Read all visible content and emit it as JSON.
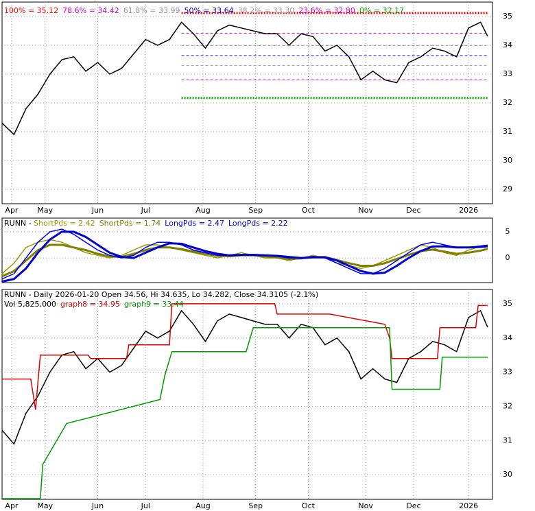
{
  "chart_data": [
    {
      "type": "line",
      "title": "RUNN - Daily 2026-01-20 Open 34.56, Hi 34.635, Lo 34.282, Close 34.3105 (-2.1%)",
      "x": [
        0,
        5,
        10,
        15,
        20,
        25,
        30,
        35,
        40,
        45,
        50,
        55,
        60,
        65,
        70,
        75,
        80,
        85,
        90,
        95,
        100,
        105,
        110,
        115,
        120,
        125,
        130,
        135,
        140,
        145,
        150,
        155,
        160,
        165,
        170,
        175,
        180,
        185,
        190,
        195,
        200,
        203
      ],
      "series": [
        {
          "color": "#000000",
          "values": [
            31.3,
            30.9,
            31.8,
            32.3,
            33.0,
            33.5,
            33.6,
            33.1,
            33.4,
            33.0,
            33.2,
            33.7,
            34.2,
            34.0,
            34.2,
            34.8,
            34.4,
            33.9,
            34.5,
            34.7,
            34.6,
            34.5,
            34.4,
            34.4,
            34.0,
            34.4,
            34.3,
            33.8,
            34.0,
            33.6,
            32.8,
            33.1,
            32.8,
            32.7,
            33.4,
            33.6,
            33.9,
            33.8,
            33.6,
            34.6,
            34.8,
            34.31
          ]
        }
      ],
      "levels": [
        {
          "label": "100% = 35.12",
          "value": 35.12,
          "color": "#ff0000"
        },
        {
          "label": "78.6% = 34.42",
          "value": 34.42,
          "color": "#cc00cc"
        },
        {
          "label": "61.8% = 33.99",
          "value": 33.99,
          "color": "#8899bb"
        },
        {
          "label": "50% = 33.64",
          "value": 33.64,
          "color": "#0000cc"
        },
        {
          "label": "38.2% = 33.30",
          "value": 33.3,
          "color": "#999999"
        },
        {
          "label": "23.6% = 32.80",
          "value": 32.8,
          "color": "#cc00cc"
        },
        {
          "label": "0% = 32.17",
          "value": 32.17,
          "color": "#00aa00"
        }
      ],
      "xlim": [
        0,
        205
      ],
      "xticks": [
        {
          "value": 4,
          "label": "Apr"
        },
        {
          "value": 18,
          "label": "May"
        },
        {
          "value": 40,
          "label": "Jun"
        },
        {
          "value": 60,
          "label": "Jul"
        },
        {
          "value": 84,
          "label": "Aug"
        },
        {
          "value": 106,
          "label": "Sep"
        },
        {
          "value": 128,
          "label": "Oct"
        },
        {
          "value": 152,
          "label": "Nov"
        },
        {
          "value": 172,
          "label": "Dec"
        },
        {
          "value": 195,
          "label": "2026"
        }
      ],
      "ylim": [
        28.5,
        35.5
      ],
      "yticks": [
        29,
        30,
        31,
        32,
        33,
        34,
        35
      ],
      "grid": true
    },
    {
      "type": "line",
      "title": "RUNN - ",
      "x": [
        0,
        5,
        10,
        15,
        20,
        25,
        30,
        35,
        40,
        45,
        50,
        55,
        60,
        65,
        70,
        75,
        80,
        85,
        90,
        95,
        100,
        105,
        110,
        115,
        120,
        125,
        130,
        135,
        140,
        145,
        150,
        155,
        160,
        165,
        170,
        175,
        180,
        185,
        190,
        195,
        200,
        203
      ],
      "series": [
        {
          "name": "ShortPds = 2.42",
          "color": "#999900",
          "values": [
            -3,
            -1,
            2,
            3,
            3.5,
            3,
            2,
            1,
            0.5,
            0,
            0.5,
            1.5,
            2.5,
            2.5,
            2,
            1.5,
            1,
            0.5,
            0,
            0.5,
            1,
            0.5,
            0,
            0,
            -0.5,
            0,
            0.5,
            0,
            -1,
            -1.5,
            -2,
            -1.5,
            -0.5,
            0.5,
            1.5,
            2.5,
            2,
            1,
            0.5,
            1.5,
            2.2,
            2.42
          ]
        },
        {
          "name": "ShortPds = 1.74",
          "color": "#808000",
          "values": [
            -3.5,
            -2.5,
            -0.5,
            1.5,
            2.5,
            2.5,
            2,
            1.5,
            0.8,
            0.3,
            0.2,
            0.8,
            1.5,
            2,
            2,
            1.7,
            1.2,
            0.8,
            0.4,
            0.3,
            0.5,
            0.5,
            0.3,
            0.1,
            -0.2,
            -0.1,
            0.2,
            0.2,
            -0.4,
            -1,
            -1.5,
            -1.5,
            -1,
            -0.2,
            0.6,
            1.3,
            1.6,
            1.2,
            0.8,
            1,
            1.4,
            1.74
          ]
        },
        {
          "name": "LongPds = 2.47",
          "color": "#0000ff",
          "values": [
            -4,
            -3,
            0,
            3,
            5,
            5.5,
            4.5,
            3,
            1.5,
            0.5,
            0,
            0.5,
            2,
            3,
            3,
            2.5,
            1.5,
            1,
            0.5,
            0.5,
            0.5,
            0.5,
            0.5,
            0.3,
            0,
            0,
            0.3,
            0,
            -1,
            -2,
            -3,
            -3,
            -2,
            -0.5,
            1,
            2.5,
            3,
            2.5,
            2,
            2,
            2.3,
            2.47
          ]
        },
        {
          "name": "LongPds = 2.22",
          "color": "#0000cc",
          "values": [
            -4.5,
            -4,
            -2,
            1,
            3.5,
            5,
            5,
            4,
            2.5,
            1,
            0.2,
            0,
            1,
            2,
            2.8,
            2.7,
            2,
            1.3,
            0.8,
            0.5,
            0.6,
            0.6,
            0.5,
            0.4,
            0.2,
            0,
            0.1,
            0.1,
            -0.5,
            -1.5,
            -2.5,
            -3,
            -2.8,
            -1.5,
            0,
            1.3,
            2.2,
            2.2,
            2,
            2,
            2.1,
            2.22
          ]
        }
      ],
      "xlim": [
        0,
        205
      ],
      "ylim": [
        -4.7,
        7.6
      ],
      "yticks": [
        0,
        5
      ],
      "grid": true
    },
    {
      "type": "line",
      "title": "RUNN - Daily 2026-01-20 Open 34.56, Hi 34.635, Lo 34.282, Close 34.3105 (-2.1%)",
      "subtitle": "Vol 5,825,000",
      "x": [
        0,
        5,
        10,
        15,
        20,
        25,
        30,
        35,
        40,
        45,
        50,
        55,
        60,
        65,
        70,
        75,
        80,
        85,
        90,
        95,
        100,
        105,
        110,
        115,
        120,
        125,
        130,
        135,
        140,
        145,
        150,
        155,
        160,
        165,
        170,
        175,
        180,
        185,
        190,
        195,
        200,
        203
      ],
      "series": [
        {
          "color": "#000000",
          "values": [
            31.3,
            30.9,
            31.8,
            32.3,
            33.0,
            33.5,
            33.6,
            33.1,
            33.4,
            33.0,
            33.2,
            33.7,
            34.2,
            34.0,
            34.2,
            34.8,
            34.4,
            33.9,
            34.5,
            34.7,
            34.6,
            34.5,
            34.4,
            34.4,
            34.0,
            34.4,
            34.3,
            33.8,
            34.0,
            33.6,
            32.8,
            33.1,
            32.8,
            32.7,
            33.4,
            33.6,
            33.9,
            33.8,
            33.6,
            34.6,
            34.8,
            34.31
          ]
        },
        {
          "name": "graph8 = 34.95",
          "color": "#dd0000",
          "x": [
            0,
            12,
            14,
            16,
            36,
            37,
            52,
            53,
            70,
            71,
            114,
            115,
            137,
            160,
            162,
            163,
            182,
            183,
            198,
            199,
            203
          ],
          "values": [
            32.8,
            32.8,
            31.9,
            33.5,
            33.5,
            33.4,
            33.4,
            33.8,
            33.8,
            35.0,
            35.0,
            34.7,
            34.7,
            34.4,
            34.0,
            33.4,
            33.4,
            34.3,
            34.3,
            34.95,
            34.95
          ]
        },
        {
          "name": "graph9 = 33.44",
          "color": "#009900",
          "x": [
            0,
            16,
            17,
            27,
            66,
            68,
            71,
            102,
            105,
            162,
            163,
            183,
            184,
            203
          ],
          "values": [
            29.3,
            29.3,
            30.3,
            31.5,
            32.2,
            32.9,
            33.6,
            33.6,
            34.3,
            34.3,
            32.5,
            32.5,
            33.44,
            33.44
          ]
        }
      ],
      "xlim": [
        0,
        205
      ],
      "xticks": [
        {
          "value": 4,
          "label": "Apr"
        },
        {
          "value": 18,
          "label": "May"
        },
        {
          "value": 40,
          "label": "Jun"
        },
        {
          "value": 60,
          "label": "Jul"
        },
        {
          "value": 84,
          "label": "Aug"
        },
        {
          "value": 106,
          "label": "Sep"
        },
        {
          "value": 128,
          "label": "Oct"
        },
        {
          "value": 152,
          "label": "Nov"
        },
        {
          "value": 172,
          "label": "Dec"
        },
        {
          "value": 195,
          "label": "2026"
        }
      ],
      "ylim": [
        29.28,
        35.42
      ],
      "yticks": [
        30,
        31,
        32,
        33,
        34,
        35
      ],
      "grid": true
    }
  ]
}
